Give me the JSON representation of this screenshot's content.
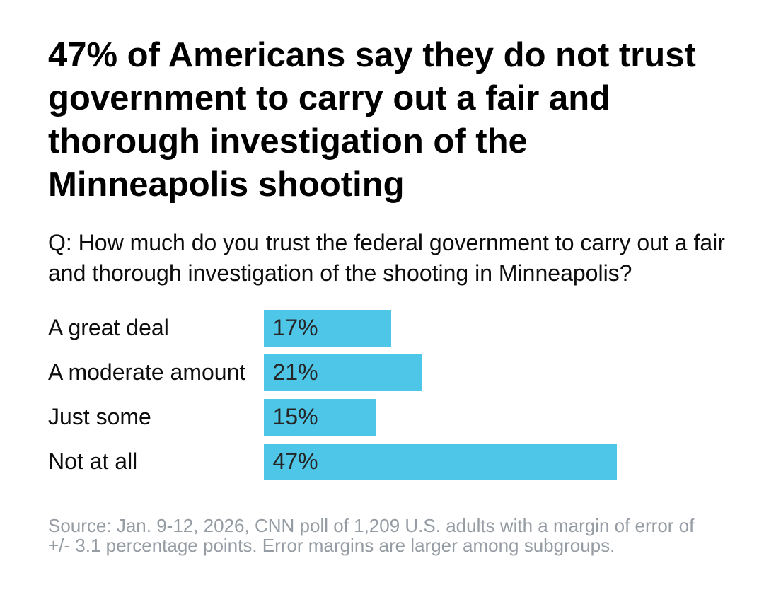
{
  "chart_data": {
    "type": "bar",
    "orientation": "horizontal",
    "title": "47% of Americans say they do not trust government to carry out a fair and thorough investigation of the Minneapolis shooting",
    "question": "Q: How much do you trust the federal government to carry out a fair and thorough investigation of the shooting in Minneapolis?",
    "categories": [
      "A great deal",
      "A moderate amount",
      "Just some",
      "Not at all"
    ],
    "values": [
      17,
      21,
      15,
      47
    ],
    "value_labels": [
      "17%",
      "21%",
      "15%",
      "47%"
    ],
    "xlim": [
      0,
      47
    ],
    "grid": false,
    "legend": false,
    "bar_color": "#4DC6E7",
    "source": "Source: Jan. 9-12, 2026, CNN poll of 1,209 U.S. adults with a margin of error of +/- 3.1 percentage points. Error margins are larger among subgroups."
  },
  "title": {
    "lines": [
      "47% of Americans say they do not trust",
      "government to carry out a fair and",
      "thorough investigation of the",
      "Minneapolis shooting"
    ]
  },
  "question": {
    "lines": [
      "Q: How much do you trust the federal government to carry out a fair",
      "and thorough investigation of the shooting in Minneapolis?"
    ]
  },
  "source": {
    "lines": [
      "Source: Jan. 9-12, 2026, CNN poll of 1,209 U.S. adults with a margin of error of",
      "+/- 3.1 percentage points. Error margins are larger among subgroups."
    ]
  }
}
